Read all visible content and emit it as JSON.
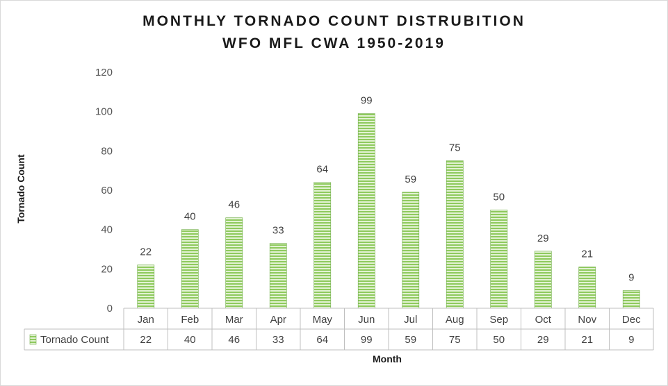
{
  "chart_data": {
    "type": "bar",
    "title_line1": "MONTHLY TORNADO COUNT DISTRUBITION",
    "title_line2": "WFO MFL CWA 1950-2019",
    "xlabel": "Month",
    "ylabel": "Tornado Count",
    "ylim": [
      0,
      120
    ],
    "yticks": [
      0,
      20,
      40,
      60,
      80,
      100,
      120
    ],
    "categories": [
      "Jan",
      "Feb",
      "Mar",
      "Apr",
      "May",
      "Jun",
      "Jul",
      "Aug",
      "Sep",
      "Oct",
      "Nov",
      "Dec"
    ],
    "series": [
      {
        "name": "Tornado Count",
        "values": [
          22,
          40,
          46,
          33,
          64,
          99,
          59,
          75,
          50,
          29,
          21,
          9
        ]
      }
    ],
    "data_labels": true,
    "grid": false,
    "data_table": true,
    "legend": "data-table",
    "colors": {
      "bar_fill": "#8fca5e",
      "bar_stripe": "#e2f2d3",
      "bar_edge": "#70ad47"
    }
  }
}
